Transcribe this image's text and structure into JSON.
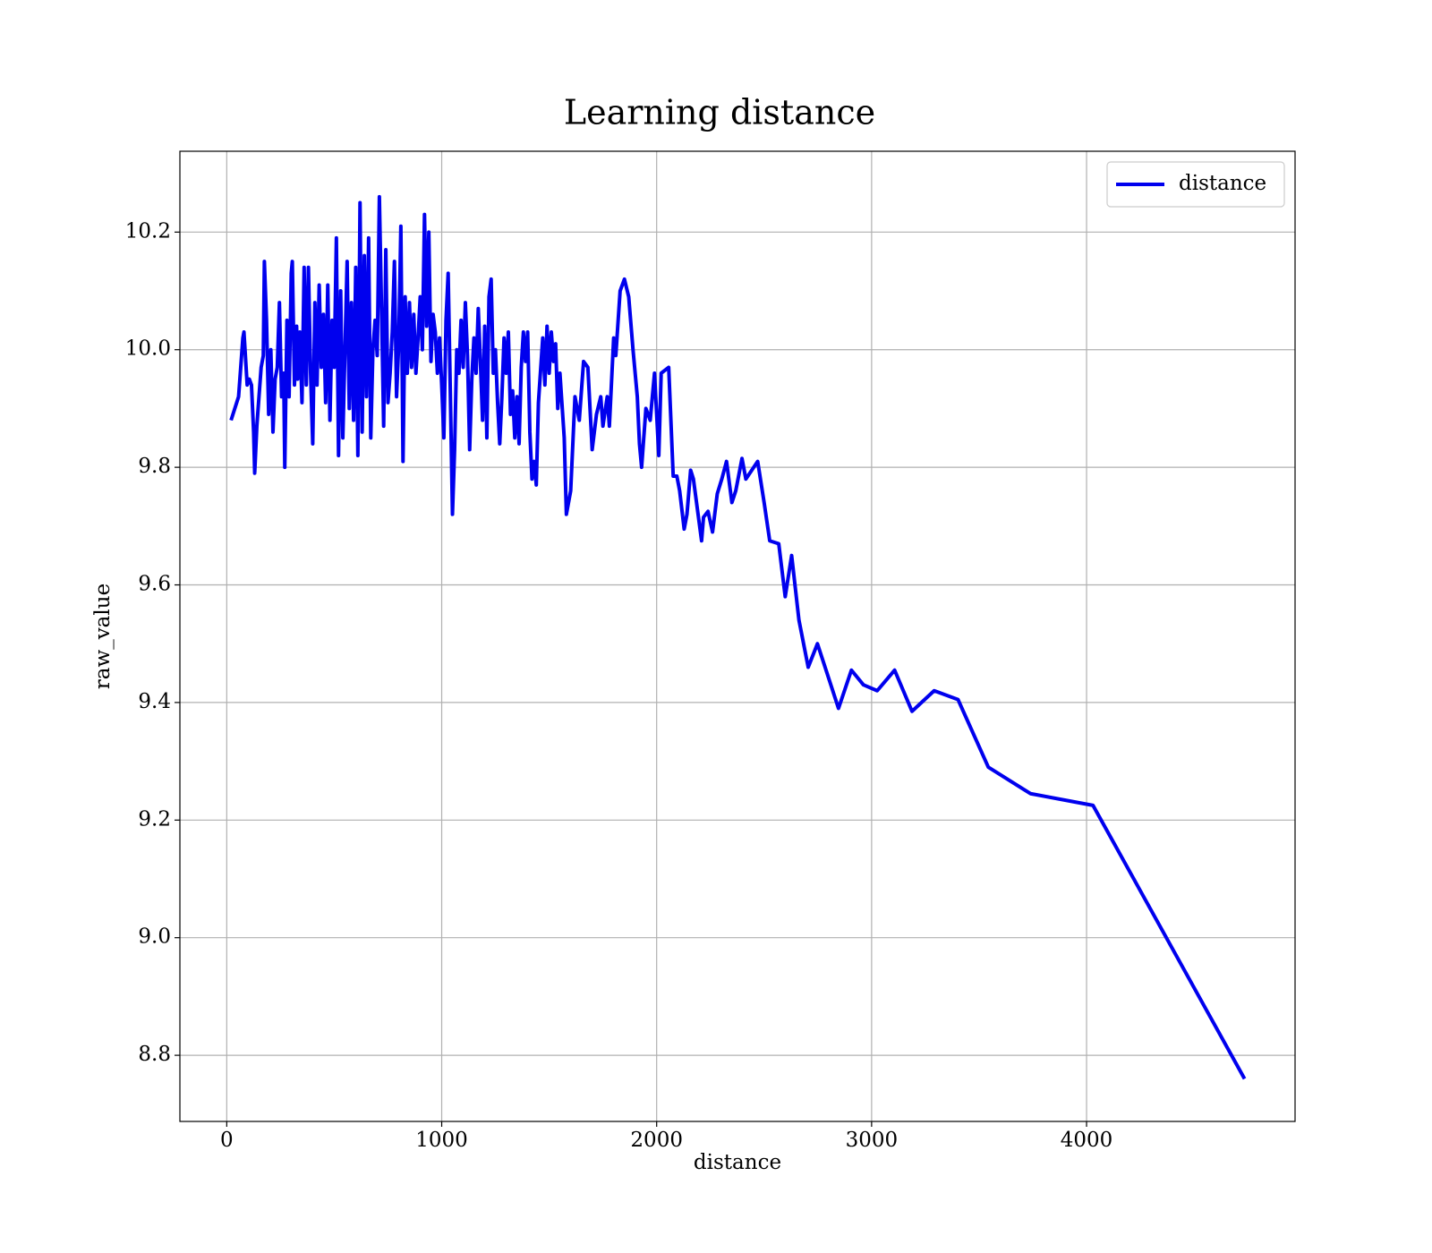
{
  "chart_data": {
    "type": "line",
    "title": "Learning distance",
    "x_label": "distance",
    "y_label": "raw_value",
    "xlim": [
      -218,
      4970
    ],
    "ylim": [
      8.6875,
      10.3375
    ],
    "xticks": [
      0,
      1000,
      2000,
      3000,
      4000
    ],
    "yticks": [
      8.8,
      {
        "value": 9.0,
        "label": "9.0"
      },
      9.2,
      9.4,
      9.6,
      9.8,
      {
        "value": 10.0,
        "label": "10.0"
      },
      10.2
    ],
    "grid": true,
    "legend": "upper right",
    "series": [
      {
        "name": "distance",
        "color": "#0000ee",
        "x": [
          20,
          55,
          75,
          80,
          95,
          105,
          115,
          125,
          130,
          140,
          150,
          160,
          170,
          175,
          185,
          195,
          205,
          215,
          225,
          235,
          245,
          255,
          265,
          270,
          280,
          290,
          300,
          305,
          315,
          325,
          330,
          340,
          350,
          360,
          370,
          380,
          390,
          400,
          410,
          420,
          430,
          440,
          450,
          460,
          470,
          480,
          490,
          500,
          510,
          520,
          530,
          540,
          550,
          560,
          570,
          580,
          590,
          600,
          610,
          620,
          630,
          640,
          650,
          660,
          670,
          680,
          690,
          700,
          710,
          720,
          730,
          740,
          750,
          760,
          770,
          780,
          790,
          800,
          810,
          820,
          830,
          840,
          850,
          860,
          870,
          880,
          890,
          900,
          910,
          920,
          930,
          940,
          950,
          960,
          970,
          980,
          990,
          1000,
          1010,
          1020,
          1030,
          1040,
          1050,
          1060,
          1070,
          1080,
          1090,
          1100,
          1110,
          1120,
          1130,
          1140,
          1150,
          1160,
          1170,
          1180,
          1190,
          1200,
          1210,
          1220,
          1230,
          1240,
          1250,
          1260,
          1270,
          1280,
          1290,
          1300,
          1310,
          1320,
          1330,
          1340,
          1350,
          1360,
          1370,
          1380,
          1390,
          1400,
          1410,
          1420,
          1430,
          1440,
          1450,
          1470,
          1480,
          1490,
          1500,
          1510,
          1520,
          1530,
          1540,
          1550,
          1570,
          1580,
          1600,
          1620,
          1640,
          1660,
          1680,
          1700,
          1720,
          1740,
          1750,
          1770,
          1780,
          1800,
          1810,
          1830,
          1850,
          1870,
          1890,
          1910,
          1920,
          1930,
          1950,
          1970,
          1990,
          2010,
          2021,
          2056,
          2077,
          2094,
          2107,
          2128,
          2141,
          2158,
          2171,
          2209,
          2218,
          2239,
          2260,
          2282,
          2303,
          2325,
          2350,
          2368,
          2397,
          2415,
          2470,
          2500,
          2526,
          2568,
          2598,
          2628,
          2662,
          2705,
          2748,
          2846,
          2906,
          2962,
          3026,
          3107,
          3188,
          3291,
          3402,
          3543,
          3739,
          4030,
          4735
        ],
        "values": [
          9.88,
          9.92,
          10.02,
          10.03,
          9.94,
          9.95,
          9.94,
          9.86,
          9.79,
          9.87,
          9.92,
          9.97,
          9.99,
          10.15,
          10.05,
          9.89,
          10.0,
          9.86,
          9.95,
          9.97,
          10.08,
          9.92,
          9.96,
          9.8,
          10.05,
          9.92,
          10.13,
          10.15,
          9.94,
          10.04,
          9.95,
          10.03,
          9.91,
          10.14,
          9.94,
          10.14,
          9.96,
          9.84,
          10.08,
          9.94,
          10.11,
          9.97,
          10.06,
          9.91,
          10.11,
          9.88,
          10.05,
          9.97,
          10.19,
          9.82,
          10.1,
          9.85,
          10.0,
          10.15,
          9.9,
          10.08,
          9.88,
          10.14,
          9.82,
          10.25,
          9.86,
          10.16,
          9.92,
          10.19,
          9.85,
          10.0,
          10.05,
          9.99,
          10.26,
          10.07,
          9.87,
          10.17,
          9.91,
          9.96,
          10.03,
          10.15,
          9.92,
          10.01,
          10.21,
          9.81,
          10.09,
          9.96,
          10.08,
          9.97,
          10.06,
          9.96,
          10.02,
          10.09,
          10.0,
          10.23,
          10.04,
          10.2,
          9.98,
          10.06,
          10.03,
          9.96,
          10.02,
          9.94,
          9.85,
          10.05,
          10.13,
          9.93,
          9.72,
          9.83,
          10.0,
          9.96,
          10.05,
          9.97,
          10.08,
          9.99,
          9.83,
          9.95,
          10.02,
          9.96,
          10.07,
          9.98,
          9.88,
          10.04,
          9.85,
          10.09,
          10.12,
          9.96,
          10.0,
          9.91,
          9.84,
          9.92,
          10.02,
          9.96,
          10.03,
          9.89,
          9.93,
          9.85,
          9.92,
          9.84,
          9.97,
          10.03,
          9.98,
          10.03,
          9.86,
          9.78,
          9.81,
          9.77,
          9.91,
          10.02,
          9.94,
          10.04,
          9.96,
          10.03,
          9.98,
          10.01,
          9.9,
          9.96,
          9.85,
          9.72,
          9.76,
          9.92,
          9.88,
          9.98,
          9.97,
          9.83,
          9.89,
          9.92,
          9.87,
          9.92,
          9.87,
          10.02,
          9.99,
          10.1,
          10.12,
          10.09,
          10.0,
          9.92,
          9.84,
          9.8,
          9.9,
          9.88,
          9.96,
          9.82,
          9.96,
          9.97,
          9.785,
          9.785,
          9.76,
          9.695,
          9.72,
          9.795,
          9.78,
          9.675,
          9.715,
          9.725,
          9.69,
          9.755,
          9.78,
          9.81,
          9.74,
          9.76,
          9.815,
          9.78,
          9.81,
          9.74,
          9.675,
          9.67,
          9.58,
          9.65,
          9.54,
          9.46,
          9.5,
          9.39,
          9.455,
          9.43,
          9.42,
          9.455,
          9.385,
          9.42,
          9.405,
          9.29,
          9.245,
          9.225,
          8.76
        ]
      }
    ]
  }
}
